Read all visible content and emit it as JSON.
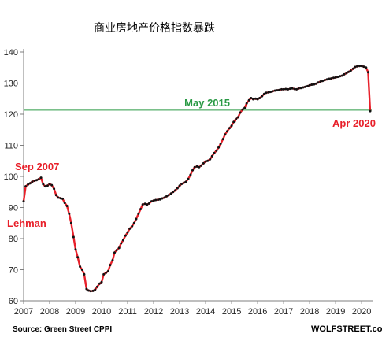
{
  "chart_data": {
    "type": "line",
    "title": "商业房地产价格指数暴跌",
    "xlabel": "",
    "ylabel": "",
    "xlim": [
      2007.0,
      2020.45
    ],
    "ylim": [
      60,
      140
    ],
    "yticks": [
      60,
      70,
      80,
      90,
      100,
      110,
      120,
      130,
      140
    ],
    "xticks": [
      "2007",
      "2008",
      "2009",
      "2010",
      "2011",
      "2012",
      "2013",
      "2014",
      "2015",
      "2016",
      "2017",
      "2018",
      "2019",
      "2020"
    ],
    "grid": false,
    "series": [
      {
        "color": "#e8202a",
        "marker_color": "#111111",
        "points": [
          [
            2007.0,
            92.0
          ],
          [
            2007.08,
            96.8
          ],
          [
            2007.17,
            97.4
          ],
          [
            2007.25,
            97.8
          ],
          [
            2007.33,
            98.3
          ],
          [
            2007.42,
            98.6
          ],
          [
            2007.5,
            98.8
          ],
          [
            2007.58,
            99.1
          ],
          [
            2007.67,
            99.6
          ],
          [
            2007.75,
            97.5
          ],
          [
            2007.83,
            96.8
          ],
          [
            2007.92,
            97.0
          ],
          [
            2008.0,
            97.6
          ],
          [
            2008.08,
            97.2
          ],
          [
            2008.17,
            96.0
          ],
          [
            2008.25,
            94.0
          ],
          [
            2008.33,
            93.2
          ],
          [
            2008.42,
            93.0
          ],
          [
            2008.5,
            92.8
          ],
          [
            2008.58,
            91.5
          ],
          [
            2008.67,
            90.5
          ],
          [
            2008.75,
            88.0
          ],
          [
            2008.83,
            85.0
          ],
          [
            2008.92,
            80.5
          ],
          [
            2009.0,
            76.5
          ],
          [
            2009.08,
            74.0
          ],
          [
            2009.17,
            71.0
          ],
          [
            2009.25,
            70.0
          ],
          [
            2009.33,
            68.5
          ],
          [
            2009.42,
            63.8
          ],
          [
            2009.5,
            63.3
          ],
          [
            2009.58,
            63.1
          ],
          [
            2009.67,
            63.2
          ],
          [
            2009.75,
            63.6
          ],
          [
            2009.83,
            64.5
          ],
          [
            2009.92,
            65.5
          ],
          [
            2010.0,
            66.0
          ],
          [
            2010.08,
            68.5
          ],
          [
            2010.17,
            69.0
          ],
          [
            2010.25,
            69.5
          ],
          [
            2010.33,
            71.5
          ],
          [
            2010.42,
            73.0
          ],
          [
            2010.5,
            75.5
          ],
          [
            2010.58,
            76.3
          ],
          [
            2010.67,
            77.0
          ],
          [
            2010.75,
            78.5
          ],
          [
            2010.83,
            79.5
          ],
          [
            2010.92,
            81.0
          ],
          [
            2011.0,
            82.0
          ],
          [
            2011.08,
            83.2
          ],
          [
            2011.17,
            84.0
          ],
          [
            2011.25,
            85.0
          ],
          [
            2011.33,
            86.3
          ],
          [
            2011.42,
            88.0
          ],
          [
            2011.5,
            89.5
          ],
          [
            2011.58,
            91.0
          ],
          [
            2011.67,
            91.2
          ],
          [
            2011.75,
            91.0
          ],
          [
            2011.83,
            91.3
          ],
          [
            2011.92,
            92.0
          ],
          [
            2012.0,
            92.2
          ],
          [
            2012.08,
            92.4
          ],
          [
            2012.17,
            92.5
          ],
          [
            2012.25,
            92.6
          ],
          [
            2012.33,
            92.9
          ],
          [
            2012.42,
            93.2
          ],
          [
            2012.5,
            93.6
          ],
          [
            2012.58,
            94.0
          ],
          [
            2012.67,
            94.5
          ],
          [
            2012.75,
            95.0
          ],
          [
            2012.83,
            95.5
          ],
          [
            2012.92,
            96.2
          ],
          [
            2013.0,
            97.0
          ],
          [
            2013.08,
            97.6
          ],
          [
            2013.17,
            98.0
          ],
          [
            2013.25,
            98.3
          ],
          [
            2013.33,
            99.2
          ],
          [
            2013.42,
            100.5
          ],
          [
            2013.5,
            102.0
          ],
          [
            2013.58,
            103.0
          ],
          [
            2013.67,
            103.2
          ],
          [
            2013.75,
            103.0
          ],
          [
            2013.83,
            103.5
          ],
          [
            2013.92,
            104.2
          ],
          [
            2014.0,
            104.8
          ],
          [
            2014.08,
            105.0
          ],
          [
            2014.17,
            105.5
          ],
          [
            2014.25,
            106.5
          ],
          [
            2014.33,
            107.5
          ],
          [
            2014.42,
            108.3
          ],
          [
            2014.5,
            109.3
          ],
          [
            2014.58,
            110.5
          ],
          [
            2014.67,
            112.0
          ],
          [
            2014.75,
            113.5
          ],
          [
            2014.83,
            114.5
          ],
          [
            2014.92,
            115.5
          ],
          [
            2015.0,
            116.3
          ],
          [
            2015.08,
            117.5
          ],
          [
            2015.17,
            118.5
          ],
          [
            2015.25,
            119.0
          ],
          [
            2015.33,
            120.5
          ],
          [
            2015.42,
            121.5
          ],
          [
            2015.5,
            122.0
          ],
          [
            2015.58,
            123.5
          ],
          [
            2015.67,
            124.5
          ],
          [
            2015.75,
            125.2
          ],
          [
            2015.83,
            124.8
          ],
          [
            2015.92,
            125.0
          ],
          [
            2016.0,
            124.8
          ],
          [
            2016.08,
            125.2
          ],
          [
            2016.17,
            125.8
          ],
          [
            2016.25,
            126.5
          ],
          [
            2016.33,
            126.9
          ],
          [
            2016.42,
            127.0
          ],
          [
            2016.5,
            127.2
          ],
          [
            2016.58,
            127.4
          ],
          [
            2016.67,
            127.6
          ],
          [
            2016.75,
            127.7
          ],
          [
            2016.83,
            127.8
          ],
          [
            2016.92,
            128.0
          ],
          [
            2017.0,
            128.0
          ],
          [
            2017.08,
            128.1
          ],
          [
            2017.17,
            128.0
          ],
          [
            2017.25,
            128.2
          ],
          [
            2017.33,
            128.3
          ],
          [
            2017.42,
            128.1
          ],
          [
            2017.5,
            128.0
          ],
          [
            2017.58,
            128.3
          ],
          [
            2017.67,
            128.4
          ],
          [
            2017.75,
            128.6
          ],
          [
            2017.83,
            128.8
          ],
          [
            2017.92,
            129.0
          ],
          [
            2018.0,
            129.3
          ],
          [
            2018.08,
            129.5
          ],
          [
            2018.17,
            129.6
          ],
          [
            2018.25,
            129.8
          ],
          [
            2018.33,
            130.2
          ],
          [
            2018.42,
            130.5
          ],
          [
            2018.5,
            130.7
          ],
          [
            2018.58,
            131.0
          ],
          [
            2018.67,
            131.2
          ],
          [
            2018.75,
            131.4
          ],
          [
            2018.83,
            131.5
          ],
          [
            2018.92,
            131.7
          ],
          [
            2019.0,
            131.8
          ],
          [
            2019.08,
            132.0
          ],
          [
            2019.17,
            132.2
          ],
          [
            2019.25,
            132.4
          ],
          [
            2019.33,
            132.8
          ],
          [
            2019.42,
            133.2
          ],
          [
            2019.5,
            133.6
          ],
          [
            2019.58,
            134.0
          ],
          [
            2019.67,
            134.6
          ],
          [
            2019.75,
            135.2
          ],
          [
            2019.83,
            135.4
          ],
          [
            2019.92,
            135.5
          ],
          [
            2020.0,
            135.5
          ],
          [
            2020.08,
            135.3
          ],
          [
            2020.17,
            135.0
          ],
          [
            2020.25,
            133.5
          ],
          [
            2020.33,
            121.0
          ]
        ]
      }
    ],
    "reference_line": {
      "y": 121.3,
      "color": "#2a9a45",
      "label": "May 2015"
    },
    "annotations": [
      {
        "text": "Sep 2007",
        "color": "#e8202a"
      },
      {
        "text": "Lehman",
        "color": "#e8202a"
      },
      {
        "text": "Apr 2020",
        "color": "#e8202a"
      }
    ],
    "source": "Source: Green Street CPPI",
    "brand": "WOLFSTREET.com"
  }
}
